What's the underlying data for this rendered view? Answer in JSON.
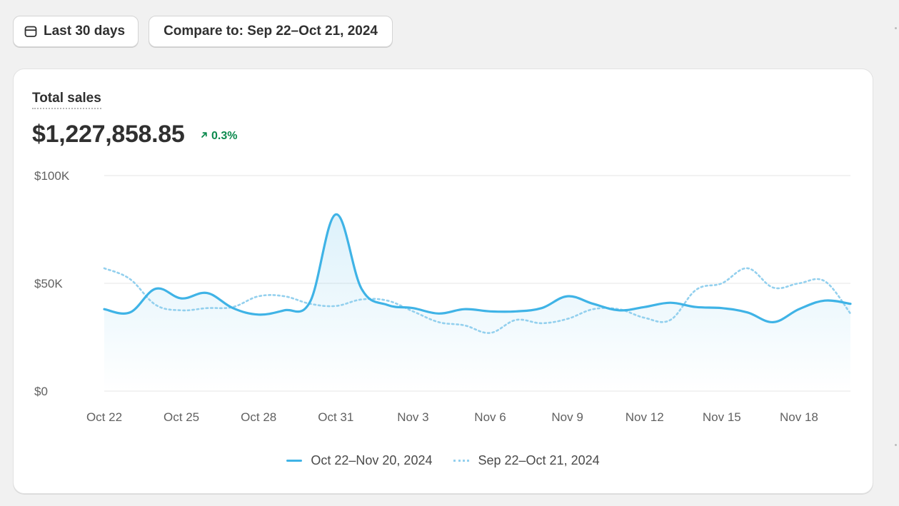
{
  "toolbar": {
    "date_range_label": "Last 30 days",
    "compare_label": "Compare to: Sep 22–Oct 21, 2024"
  },
  "metric": {
    "title": "Total sales",
    "value": "$1,227,858.85",
    "change": "0.3%",
    "change_direction": "up"
  },
  "colors": {
    "primary": "#3fb3e6",
    "comparison": "#93d0ee",
    "positive": "#0c8a4e",
    "grid": "#e6e6e6"
  },
  "chart_data": {
    "type": "line",
    "title": "Total sales",
    "ylim": [
      0,
      100000
    ],
    "y_ticks": [
      {
        "value": 0,
        "label": "$0"
      },
      {
        "value": 50000,
        "label": "$50K"
      },
      {
        "value": 100000,
        "label": "$100K"
      }
    ],
    "x_tick_labels": [
      "Oct 22",
      "Oct 25",
      "Oct 28",
      "Oct 31",
      "Nov 3",
      "Nov 6",
      "Nov 9",
      "Nov 12",
      "Nov 15",
      "Nov 18"
    ],
    "x_tick_days": [
      0,
      3,
      6,
      9,
      12,
      15,
      18,
      21,
      24,
      27
    ],
    "grid": true,
    "legend_position": "bottom-center",
    "series": [
      {
        "name": "Oct 22–Nov 20, 2024",
        "style": "solid",
        "values": [
          38000,
          36500,
          47500,
          43000,
          45500,
          38500,
          35500,
          37500,
          41500,
          82000,
          47500,
          40000,
          38500,
          36000,
          38000,
          37000,
          37000,
          38500,
          44000,
          40500,
          37500,
          39000,
          41000,
          39000,
          38500,
          36500,
          32000,
          38000,
          42000,
          40500
        ]
      },
      {
        "name": "Sep 22–Oct 21, 2024",
        "style": "dotted",
        "values": [
          57000,
          52000,
          40000,
          37500,
          38500,
          39000,
          44000,
          44000,
          40500,
          39500,
          42500,
          42000,
          37000,
          32000,
          30500,
          27000,
          33000,
          31500,
          33500,
          38000,
          38000,
          34000,
          33000,
          47000,
          50000,
          57000,
          48000,
          50000,
          51000,
          36000
        ]
      }
    ]
  }
}
